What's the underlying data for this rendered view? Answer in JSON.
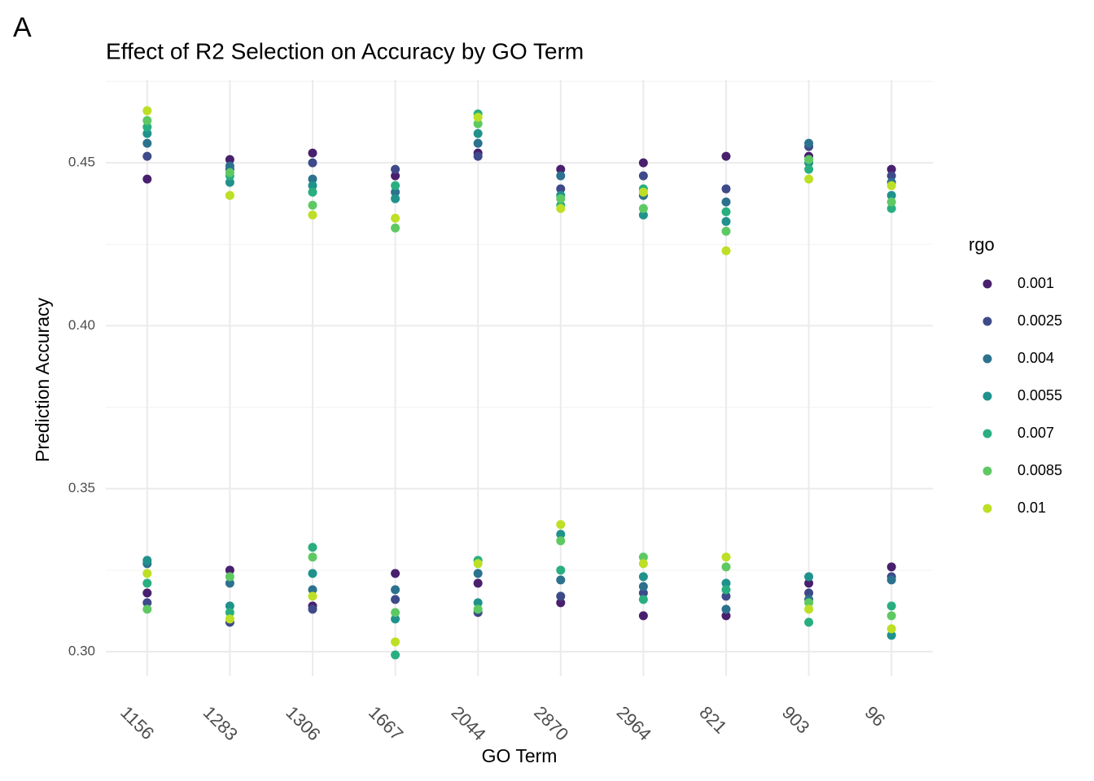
{
  "panel_label": "A",
  "chart_data": {
    "type": "scatter",
    "title": "Effect of R2 Selection on Accuracy by GO Term",
    "x_label": "GO Term",
    "y_label": "Prediction Accuracy",
    "legend_title": "rgo",
    "categories": [
      "1156",
      "1283",
      "1306",
      "1667",
      "2044",
      "2870",
      "2964",
      "821",
      "903",
      "96"
    ],
    "ylim": [
      0.2925,
      0.4755
    ],
    "yticks": [
      {
        "value": 0.3,
        "label": "0.30"
      },
      {
        "value": 0.35,
        "label": "0.35"
      },
      {
        "value": 0.4,
        "label": "0.40"
      },
      {
        "value": 0.45,
        "label": "0.45"
      }
    ],
    "grid": true,
    "series": [
      {
        "name": "0.001",
        "color": "#48206E",
        "x": [
          "1156",
          "1156",
          "1283",
          "1283",
          "1306",
          "1306",
          "1667",
          "1667",
          "2044",
          "2044",
          "2870",
          "2870",
          "2964",
          "2964",
          "821",
          "821",
          "903",
          "903",
          "96",
          "96"
        ],
        "values": [
          0.445,
          0.318,
          0.451,
          0.325,
          0.453,
          0.314,
          0.446,
          0.324,
          0.453,
          0.321,
          0.448,
          0.315,
          0.45,
          0.311,
          0.452,
          0.311,
          0.452,
          0.321,
          0.448,
          0.326
        ]
      },
      {
        "name": "0.0025",
        "color": "#3E4A89",
        "x": [
          "1156",
          "1156",
          "1283",
          "1283",
          "1306",
          "1306",
          "1667",
          "1667",
          "2044",
          "2044",
          "2870",
          "2870",
          "2964",
          "2964",
          "821",
          "821",
          "903",
          "903",
          "96",
          "96"
        ],
        "values": [
          0.452,
          0.315,
          0.448,
          0.309,
          0.45,
          0.313,
          0.448,
          0.316,
          0.452,
          0.312,
          0.442,
          0.317,
          0.446,
          0.318,
          0.442,
          0.317,
          0.455,
          0.318,
          0.446,
          0.323
        ]
      },
      {
        "name": "0.004",
        "color": "#2C728E",
        "x": [
          "1156",
          "1156",
          "1283",
          "1283",
          "1306",
          "1306",
          "1667",
          "1667",
          "2044",
          "2044",
          "2870",
          "2870",
          "2964",
          "2964",
          "821",
          "821",
          "903",
          "903",
          "96",
          "96"
        ],
        "values": [
          0.456,
          0.327,
          0.449,
          0.321,
          0.445,
          0.319,
          0.441,
          0.319,
          0.456,
          0.324,
          0.446,
          0.322,
          0.44,
          0.32,
          0.438,
          0.313,
          0.456,
          0.316,
          0.444,
          0.322
        ]
      },
      {
        "name": "0.0055",
        "color": "#20928C",
        "x": [
          "1156",
          "1156",
          "1283",
          "1283",
          "1306",
          "1306",
          "1667",
          "1667",
          "2044",
          "2044",
          "2870",
          "2870",
          "2964",
          "2964",
          "821",
          "821",
          "903",
          "903",
          "96",
          "96"
        ],
        "values": [
          0.459,
          0.328,
          0.444,
          0.314,
          0.443,
          0.324,
          0.439,
          0.31,
          0.459,
          0.315,
          0.44,
          0.336,
          0.434,
          0.323,
          0.432,
          0.321,
          0.45,
          0.323,
          0.44,
          0.305
        ]
      },
      {
        "name": "0.007",
        "color": "#29AF7F",
        "x": [
          "1156",
          "1156",
          "1283",
          "1283",
          "1306",
          "1306",
          "1667",
          "1667",
          "2044",
          "2044",
          "2870",
          "2870",
          "2964",
          "2964",
          "821",
          "821",
          "903",
          "903",
          "96",
          "96"
        ],
        "values": [
          0.461,
          0.321,
          0.446,
          0.312,
          0.441,
          0.332,
          0.443,
          0.299,
          0.465,
          0.328,
          0.437,
          0.325,
          0.442,
          0.316,
          0.435,
          0.319,
          0.448,
          0.309,
          0.436,
          0.314
        ]
      },
      {
        "name": "0.0085",
        "color": "#5EC962",
        "x": [
          "1156",
          "1156",
          "1283",
          "1283",
          "1306",
          "1306",
          "1667",
          "1667",
          "2044",
          "2044",
          "2870",
          "2870",
          "2964",
          "2964",
          "821",
          "821",
          "903",
          "903",
          "96",
          "96"
        ],
        "values": [
          0.463,
          0.313,
          0.447,
          0.323,
          0.437,
          0.329,
          0.43,
          0.312,
          0.462,
          0.313,
          0.439,
          0.334,
          0.436,
          0.329,
          0.429,
          0.326,
          0.451,
          0.315,
          0.438,
          0.311
        ]
      },
      {
        "name": "0.01",
        "color": "#BDDF26",
        "x": [
          "1156",
          "1156",
          "1283",
          "1283",
          "1306",
          "1306",
          "1667",
          "1667",
          "2044",
          "2044",
          "2870",
          "2870",
          "2964",
          "2964",
          "821",
          "821",
          "903",
          "903",
          "96",
          "96"
        ],
        "values": [
          0.466,
          0.324,
          0.44,
          0.31,
          0.434,
          0.317,
          0.433,
          0.303,
          0.464,
          0.327,
          0.436,
          0.339,
          0.441,
          0.327,
          0.423,
          0.329,
          0.445,
          0.313,
          0.443,
          0.307
        ]
      }
    ]
  }
}
